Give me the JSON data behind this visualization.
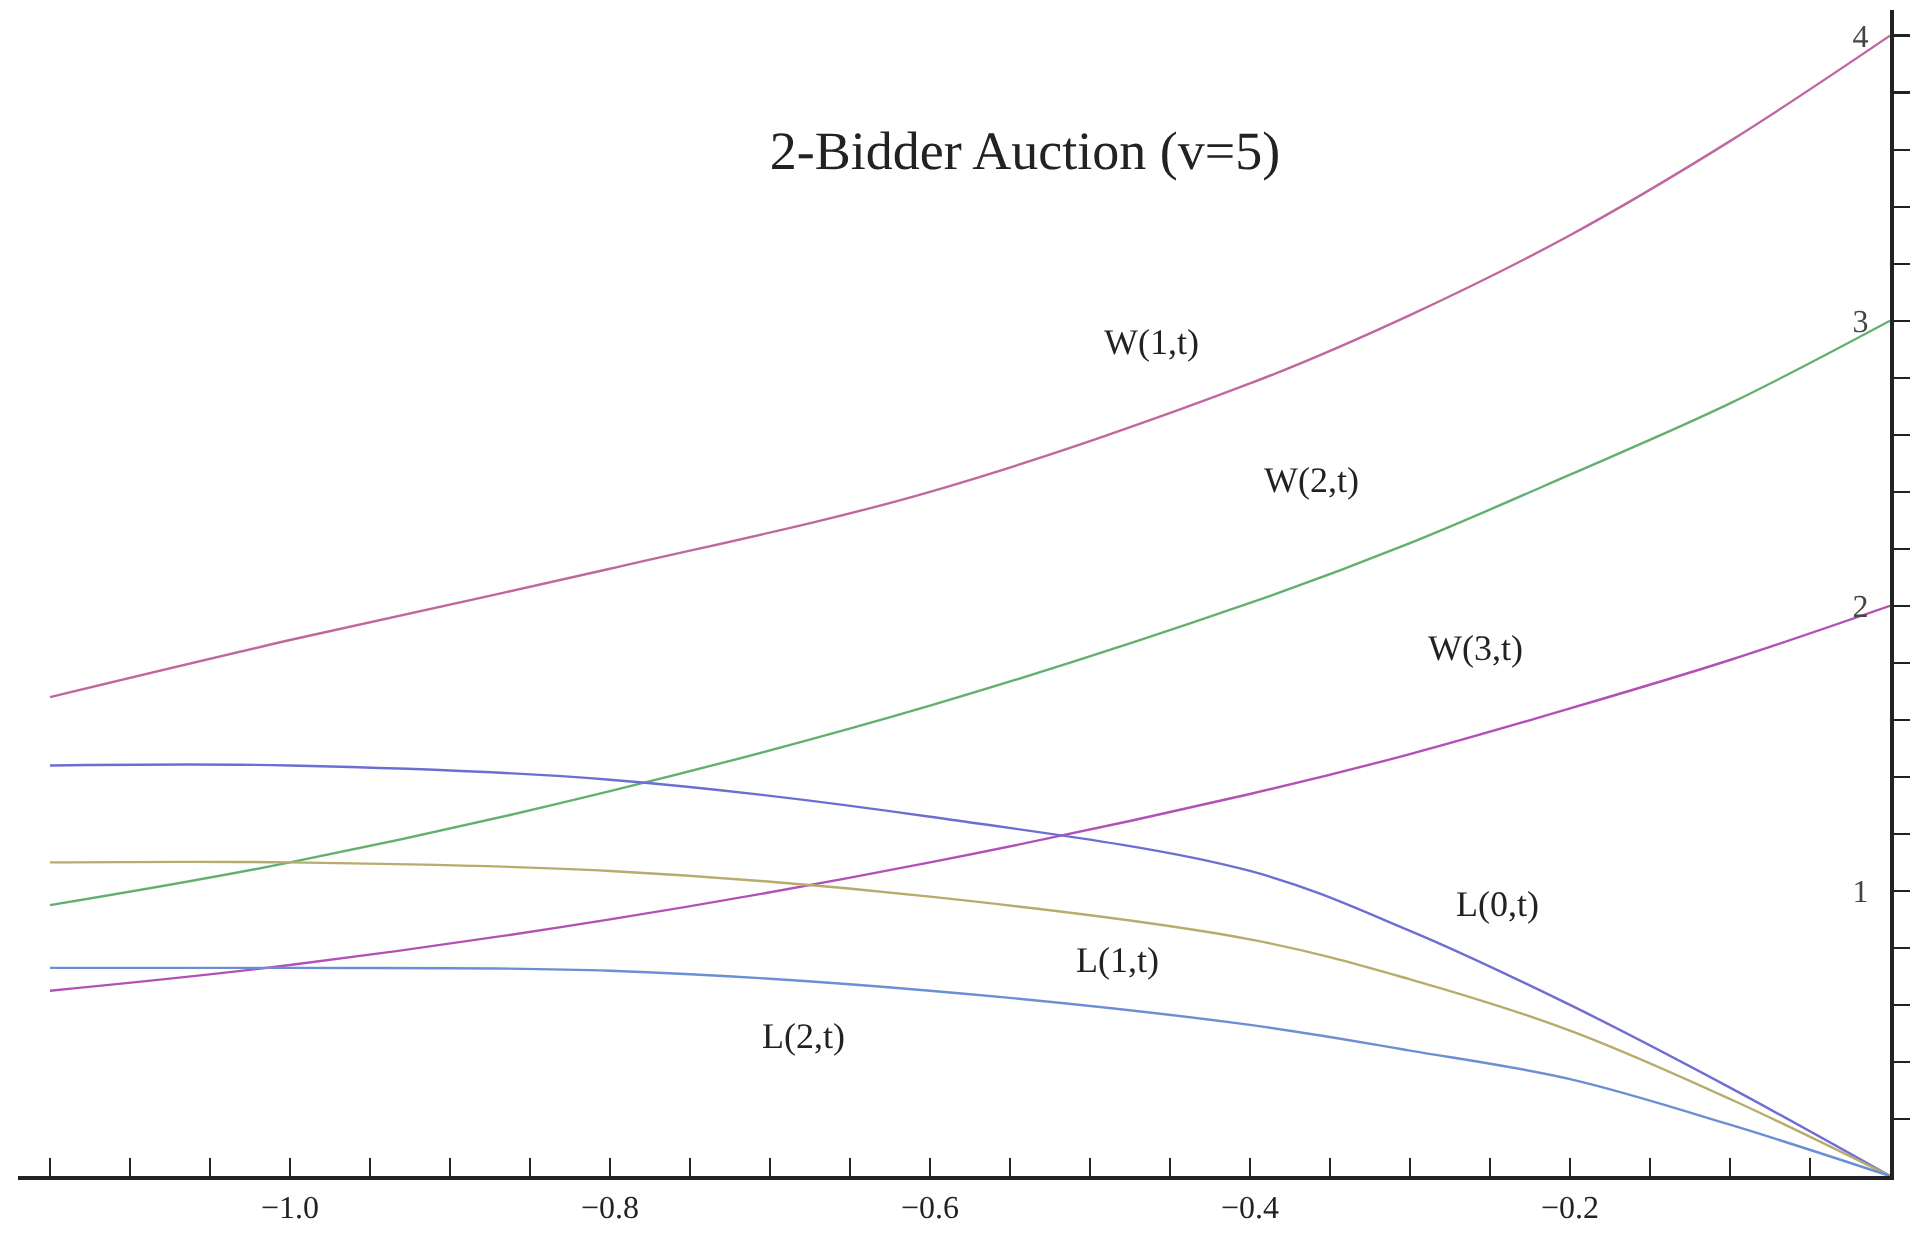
{
  "chart_data": {
    "type": "line",
    "title": "2-Bidder Auction (v=5)",
    "x": [
      -1.15,
      -1.0,
      -0.8,
      -0.6,
      -0.4,
      -0.3,
      -0.2,
      -0.1,
      0
    ],
    "series": [
      {
        "color": "#c0679f",
        "values": [
          1.68,
          1.88,
          2.13,
          2.4,
          2.78,
          3.02,
          3.3,
          3.63,
          4
        ]
      },
      {
        "color": "#62b070",
        "values": [
          0.95,
          1.1,
          1.35,
          1.65,
          2.01,
          2.22,
          2.46,
          2.71,
          3
        ]
      },
      {
        "color": "#b350b5",
        "values": [
          0.65,
          0.74,
          0.9,
          1.1,
          1.34,
          1.48,
          1.64,
          1.81,
          2
        ]
      },
      {
        "color": "#6e6ed2",
        "values": [
          1.44,
          1.44,
          1.39,
          1.26,
          1.07,
          0.86,
          0.6,
          0.31,
          0
        ]
      },
      {
        "color": "#b8ab6c",
        "values": [
          1.1,
          1.1,
          1.07,
          0.98,
          0.83,
          0.69,
          0.51,
          0.27,
          0
        ]
      },
      {
        "color": "#6b8fd2",
        "values": [
          0.73,
          0.73,
          0.72,
          0.65,
          0.53,
          0.44,
          0.34,
          0.18,
          0
        ]
      }
    ],
    "annotations": [
      {
        "text": "W(1,t)",
        "x": -0.4,
        "y": 2.78
      },
      {
        "text": "W(2,t)",
        "x": -0.4,
        "y": 2.01
      },
      {
        "text": "W(3,t)",
        "x": -0.2,
        "y": 1.64
      },
      {
        "text": "L(0,t)",
        "x": -0.2,
        "y": 0.6
      },
      {
        "text": "L(1,t)",
        "x": -0.4,
        "y": 0.83
      },
      {
        "text": "L(2,t)",
        "x": -0.6,
        "y": 0.65
      }
    ],
    "xlim": [
      -1.17,
      0
    ],
    "ylim": [
      0,
      4.09
    ],
    "xticks": [
      {
        "value": -1.15,
        "label": null
      },
      {
        "value": -1.1,
        "label": null
      },
      {
        "value": -1.05,
        "label": null
      },
      {
        "value": -1.0,
        "label": "−1.0"
      },
      {
        "value": -0.95,
        "label": null
      },
      {
        "value": -0.9,
        "label": null
      },
      {
        "value": -0.85,
        "label": null
      },
      {
        "value": -0.8,
        "label": "−0.8"
      },
      {
        "value": -0.75,
        "label": null
      },
      {
        "value": -0.7,
        "label": null
      },
      {
        "value": -0.65,
        "label": null
      },
      {
        "value": -0.6,
        "label": "−0.6"
      },
      {
        "value": -0.55,
        "label": null
      },
      {
        "value": -0.5,
        "label": null
      },
      {
        "value": -0.45,
        "label": null
      },
      {
        "value": -0.4,
        "label": "−0.4"
      },
      {
        "value": -0.35,
        "label": null
      },
      {
        "value": -0.3,
        "label": null
      },
      {
        "value": -0.25,
        "label": null
      },
      {
        "value": -0.2,
        "label": "−0.2"
      },
      {
        "value": -0.15,
        "label": null
      },
      {
        "value": -0.1,
        "label": null
      },
      {
        "value": -0.05,
        "label": null
      }
    ],
    "yticks": [
      {
        "value": 0.2,
        "label": null
      },
      {
        "value": 0.4,
        "label": null
      },
      {
        "value": 0.6,
        "label": null
      },
      {
        "value": 0.8,
        "label": null
      },
      1,
      {
        "value": 1.2,
        "label": null
      },
      {
        "value": 1.4,
        "label": null
      },
      {
        "value": 1.6,
        "label": null
      },
      {
        "value": 1.8,
        "label": null
      },
      2,
      {
        "value": 2.2,
        "label": null
      },
      {
        "value": 2.4,
        "label": null
      },
      {
        "value": 2.6,
        "label": null
      },
      {
        "value": 2.8,
        "label": null
      },
      3,
      {
        "value": 3.2,
        "label": null
      },
      {
        "value": 3.4,
        "label": null
      },
      {
        "value": 3.6,
        "label": null
      },
      {
        "value": 3.8,
        "label": null
      },
      4
    ],
    "grid": false,
    "marker": "none",
    "line_style": "solid"
  }
}
